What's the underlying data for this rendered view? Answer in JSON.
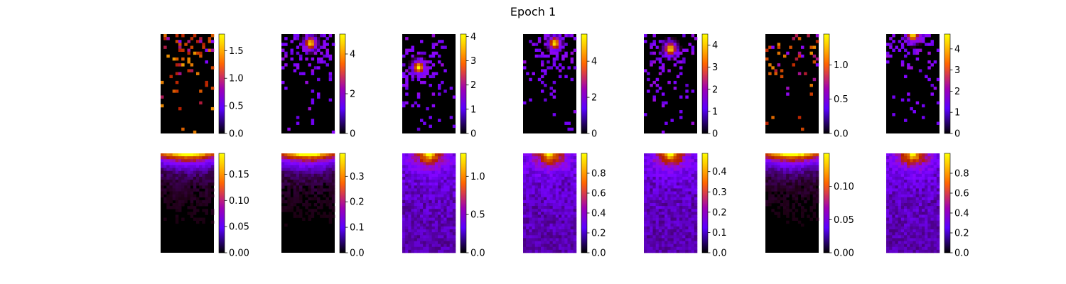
{
  "figure": {
    "title": "Epoch 1"
  },
  "colormap": {
    "name": "gnuplot",
    "stops": [
      "#000000",
      "#5a00ff",
      "#9e00b4",
      "#ff6400",
      "#ffd000",
      "#ffff00"
    ]
  },
  "chart_data": [
    {
      "type": "heatmap",
      "row": 1,
      "col": 1,
      "pattern": "sparse-top",
      "vmin": 0,
      "vmax": 1.8,
      "ticks": [
        0.0,
        0.5,
        1.0,
        1.5
      ],
      "tick_labels": [
        "0.0",
        "0.5",
        "1.0",
        "1.5"
      ]
    },
    {
      "type": "heatmap",
      "row": 1,
      "col": 2,
      "pattern": "blob",
      "hot_col": 0.55,
      "hot_row": 0.08,
      "vmin": 0,
      "vmax": 5.0,
      "ticks": [
        0,
        2,
        4
      ],
      "tick_labels": [
        "0",
        "2",
        "4"
      ]
    },
    {
      "type": "heatmap",
      "row": 1,
      "col": 3,
      "pattern": "blob",
      "hot_col": 0.3,
      "hot_row": 0.33,
      "vmin": 0,
      "vmax": 4.1,
      "ticks": [
        0,
        1,
        2,
        3,
        4
      ],
      "tick_labels": [
        "0",
        "1",
        "2",
        "3",
        "4"
      ]
    },
    {
      "type": "heatmap",
      "row": 1,
      "col": 4,
      "pattern": "blob",
      "hot_col": 0.6,
      "hot_row": 0.08,
      "vmin": 0,
      "vmax": 5.5,
      "ticks": [
        0,
        2,
        4
      ],
      "tick_labels": [
        "0",
        "2",
        "4"
      ]
    },
    {
      "type": "heatmap",
      "row": 1,
      "col": 5,
      "pattern": "blob",
      "hot_col": 0.5,
      "hot_row": 0.14,
      "vmin": 0,
      "vmax": 4.5,
      "ticks": [
        0,
        1,
        2,
        3,
        4
      ],
      "tick_labels": [
        "0",
        "1",
        "2",
        "3",
        "4"
      ]
    },
    {
      "type": "heatmap",
      "row": 1,
      "col": 6,
      "pattern": "sparse-top",
      "vmin": 0,
      "vmax": 1.45,
      "ticks": [
        0.0,
        0.5,
        1.0
      ],
      "tick_labels": [
        "0.0",
        "0.5",
        "1.0"
      ]
    },
    {
      "type": "heatmap",
      "row": 1,
      "col": 7,
      "pattern": "blob",
      "hot_col": 0.5,
      "hot_row": 0.0,
      "vmin": 0,
      "vmax": 4.7,
      "ticks": [
        0,
        1,
        2,
        3,
        4
      ],
      "tick_labels": [
        "0",
        "1",
        "2",
        "3",
        "4"
      ]
    },
    {
      "type": "heatmap",
      "row": 2,
      "col": 1,
      "pattern": "band",
      "vmin": 0,
      "vmax": 0.19,
      "ticks": [
        0.0,
        0.05,
        0.1,
        0.15
      ],
      "tick_labels": [
        "0.00",
        "0.05",
        "0.10",
        "0.15"
      ]
    },
    {
      "type": "heatmap",
      "row": 2,
      "col": 2,
      "pattern": "band",
      "vmin": 0,
      "vmax": 0.39,
      "ticks": [
        0.0,
        0.1,
        0.2,
        0.3
      ],
      "tick_labels": [
        "0.0",
        "0.1",
        "0.2",
        "0.3"
      ]
    },
    {
      "type": "heatmap",
      "row": 2,
      "col": 3,
      "pattern": "glow",
      "vmin": 0,
      "vmax": 1.3,
      "ticks": [
        0.0,
        0.5,
        1.0
      ],
      "tick_labels": [
        "0.0",
        "0.5",
        "1.0"
      ]
    },
    {
      "type": "heatmap",
      "row": 2,
      "col": 4,
      "pattern": "glow",
      "vmin": 0,
      "vmax": 1.0,
      "ticks": [
        0.0,
        0.2,
        0.4,
        0.6,
        0.8
      ],
      "tick_labels": [
        "0.0",
        "0.2",
        "0.4",
        "0.6",
        "0.8"
      ]
    },
    {
      "type": "heatmap",
      "row": 2,
      "col": 5,
      "pattern": "glow",
      "vmin": 0,
      "vmax": 0.49,
      "ticks": [
        0.0,
        0.1,
        0.2,
        0.3,
        0.4
      ],
      "tick_labels": [
        "0.0",
        "0.1",
        "0.2",
        "0.3",
        "0.4"
      ]
    },
    {
      "type": "heatmap",
      "row": 2,
      "col": 6,
      "pattern": "band",
      "vmin": 0,
      "vmax": 0.15,
      "ticks": [
        0.0,
        0.05,
        0.1
      ],
      "tick_labels": [
        "0.00",
        "0.05",
        "0.10"
      ]
    },
    {
      "type": "heatmap",
      "row": 2,
      "col": 7,
      "pattern": "glow",
      "vmin": 0,
      "vmax": 1.0,
      "ticks": [
        0.0,
        0.2,
        0.4,
        0.6,
        0.8
      ],
      "tick_labels": [
        "0.0",
        "0.2",
        "0.4",
        "0.6",
        "0.8"
      ]
    }
  ]
}
